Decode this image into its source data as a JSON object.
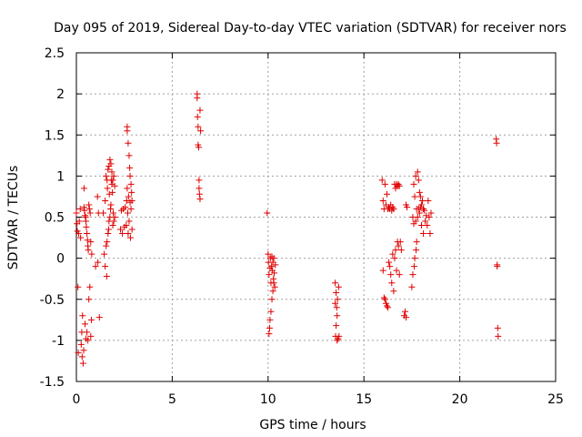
{
  "chart_data": {
    "type": "scatter",
    "title": "Day 095 of 2019, Sidereal Day-to-day VTEC variation (SDTVAR) for receiver nors",
    "xlabel": "GPS time / hours",
    "ylabel": "SDTVAR / TECUs",
    "xlim": [
      0,
      25
    ],
    "ylim": [
      -1.5,
      2.5
    ],
    "xticks": [
      0,
      5,
      10,
      15,
      20,
      25
    ],
    "xtick_labels": [
      "0",
      "5",
      "10",
      "15",
      "20",
      "25"
    ],
    "yticks": [
      -1.5,
      -1,
      -0.5,
      0,
      0.5,
      1,
      1.5,
      2,
      2.5
    ],
    "ytick_labels": [
      "-1.5",
      "-1",
      "-0.5",
      "0",
      "0.5",
      "1",
      "1.5",
      "2",
      "2.5"
    ],
    "grid": true,
    "marker": "+",
    "color": "#e00000",
    "series": [
      {
        "name": "SDTVAR",
        "points": [
          [
            0.0,
            0.55
          ],
          [
            0.03,
            0.42
          ],
          [
            0.05,
            0.33
          ],
          [
            0.08,
            -0.35
          ],
          [
            0.1,
            -1.15
          ],
          [
            0.12,
            0.3
          ],
          [
            0.15,
            0.45
          ],
          [
            0.2,
            0.6
          ],
          [
            0.22,
            0.25
          ],
          [
            0.25,
            -1.05
          ],
          [
            0.28,
            -0.9
          ],
          [
            0.3,
            -1.2
          ],
          [
            0.32,
            -0.7
          ],
          [
            0.35,
            -1.28
          ],
          [
            0.38,
            -1.12
          ],
          [
            0.4,
            0.85
          ],
          [
            0.4,
            0.62
          ],
          [
            0.42,
            0.58
          ],
          [
            0.45,
            0.52
          ],
          [
            0.45,
            -0.8
          ],
          [
            0.48,
            0.5
          ],
          [
            0.5,
            0.45
          ],
          [
            0.5,
            -0.98
          ],
          [
            0.52,
            0.38
          ],
          [
            0.55,
            0.3
          ],
          [
            0.55,
            -0.9
          ],
          [
            0.58,
            0.22
          ],
          [
            0.6,
            0.15
          ],
          [
            0.6,
            -1.0
          ],
          [
            0.62,
            0.1
          ],
          [
            0.65,
            0.65
          ],
          [
            0.65,
            -0.5
          ],
          [
            0.68,
            0.6
          ],
          [
            0.7,
            -0.35
          ],
          [
            0.72,
            0.55
          ],
          [
            0.75,
            0.2
          ],
          [
            0.75,
            -0.95
          ],
          [
            0.78,
            -0.75
          ],
          [
            0.8,
            0.05
          ],
          [
            1.0,
            -0.1
          ],
          [
            1.1,
            0.75
          ],
          [
            1.12,
            -0.05
          ],
          [
            1.15,
            0.55
          ],
          [
            1.2,
            -0.72
          ],
          [
            1.4,
            0.55
          ],
          [
            1.45,
            0.05
          ],
          [
            1.5,
            0.7
          ],
          [
            1.5,
            -0.1
          ],
          [
            1.55,
            1.0
          ],
          [
            1.55,
            0.15
          ],
          [
            1.58,
            -0.22
          ],
          [
            1.6,
            0.2
          ],
          [
            1.6,
            0.95
          ],
          [
            1.62,
            0.85
          ],
          [
            1.65,
            0.3
          ],
          [
            1.65,
            1.08
          ],
          [
            1.68,
            0.35
          ],
          [
            1.7,
            0.45
          ],
          [
            1.7,
            1.12
          ],
          [
            1.72,
            0.78
          ],
          [
            1.75,
            0.5
          ],
          [
            1.75,
            1.2
          ],
          [
            1.78,
            0.6
          ],
          [
            1.8,
            0.65
          ],
          [
            1.8,
            1.15
          ],
          [
            1.82,
            0.95
          ],
          [
            1.85,
            0.9
          ],
          [
            1.85,
            1.05
          ],
          [
            1.88,
            0.8
          ],
          [
            1.9,
            0.95
          ],
          [
            1.9,
            0.4
          ],
          [
            1.92,
            0.55
          ],
          [
            1.95,
            1.0
          ],
          [
            1.95,
            0.45
          ],
          [
            2.0,
            0.88
          ],
          [
            2.0,
            0.5
          ],
          [
            2.3,
            0.35
          ],
          [
            2.35,
            0.58
          ],
          [
            2.4,
            0.3
          ],
          [
            2.45,
            0.6
          ],
          [
            2.5,
            0.38
          ],
          [
            2.55,
            0.62
          ],
          [
            2.6,
            0.4
          ],
          [
            2.62,
            0.7
          ],
          [
            2.65,
            1.55
          ],
          [
            2.65,
            1.6
          ],
          [
            2.65,
            0.85
          ],
          [
            2.68,
            0.55
          ],
          [
            2.7,
            1.4
          ],
          [
            2.7,
            0.3
          ],
          [
            2.72,
            0.75
          ],
          [
            2.75,
            1.25
          ],
          [
            2.75,
            0.45
          ],
          [
            2.78,
            1.1
          ],
          [
            2.8,
            0.68
          ],
          [
            2.8,
            1.0
          ],
          [
            2.82,
            0.25
          ],
          [
            2.85,
            0.9
          ],
          [
            2.85,
            0.6
          ],
          [
            2.88,
            0.8
          ],
          [
            2.9,
            0.35
          ],
          [
            2.9,
            0.7
          ],
          [
            6.3,
            2.0
          ],
          [
            6.3,
            1.95
          ],
          [
            6.32,
            1.72
          ],
          [
            6.35,
            1.6
          ],
          [
            6.35,
            1.38
          ],
          [
            6.38,
            1.35
          ],
          [
            6.4,
            0.95
          ],
          [
            6.4,
            0.85
          ],
          [
            6.42,
            0.78
          ],
          [
            6.45,
            0.72
          ],
          [
            6.45,
            1.8
          ],
          [
            6.48,
            1.55
          ],
          [
            9.95,
            0.55
          ],
          [
            10.0,
            0.05
          ],
          [
            10.02,
            -0.05
          ],
          [
            10.05,
            -0.2
          ],
          [
            10.05,
            -0.92
          ],
          [
            10.08,
            -0.85
          ],
          [
            10.1,
            -0.12
          ],
          [
            10.1,
            -0.75
          ],
          [
            10.12,
            0.0
          ],
          [
            10.15,
            -0.3
          ],
          [
            10.15,
            -0.65
          ],
          [
            10.18,
            -0.1
          ],
          [
            10.2,
            -0.5
          ],
          [
            10.2,
            0.02
          ],
          [
            10.22,
            -0.15
          ],
          [
            10.25,
            -0.4
          ],
          [
            10.25,
            -0.05
          ],
          [
            10.28,
            -0.25
          ],
          [
            10.3,
            -0.3
          ],
          [
            10.3,
            0.0
          ],
          [
            10.32,
            -0.18
          ],
          [
            10.35,
            -0.35
          ],
          [
            10.38,
            -0.08
          ],
          [
            13.5,
            -0.3
          ],
          [
            13.5,
            -0.55
          ],
          [
            13.52,
            -0.95
          ],
          [
            13.55,
            -0.42
          ],
          [
            13.55,
            -0.82
          ],
          [
            13.58,
            -0.6
          ],
          [
            13.6,
            -1.0
          ],
          [
            13.6,
            -0.7
          ],
          [
            13.62,
            -0.5
          ],
          [
            13.65,
            -0.98
          ],
          [
            13.68,
            -0.35
          ],
          [
            13.7,
            -0.95
          ],
          [
            15.95,
            0.95
          ],
          [
            16.0,
            0.7
          ],
          [
            16.0,
            -0.15
          ],
          [
            16.05,
            0.6
          ],
          [
            16.05,
            -0.48
          ],
          [
            16.1,
            0.9
          ],
          [
            16.1,
            -0.5
          ],
          [
            16.15,
            0.65
          ],
          [
            16.15,
            -0.55
          ],
          [
            16.2,
            0.78
          ],
          [
            16.2,
            -0.58
          ],
          [
            16.25,
            0.6
          ],
          [
            16.25,
            -0.6
          ],
          [
            16.3,
            0.62
          ],
          [
            16.3,
            -0.05
          ],
          [
            16.35,
            0.6
          ],
          [
            16.35,
            -0.1
          ],
          [
            16.4,
            0.65
          ],
          [
            16.4,
            -0.2
          ],
          [
            16.45,
            0.58
          ],
          [
            16.45,
            -0.3
          ],
          [
            16.5,
            0.62
          ],
          [
            16.5,
            0.05
          ],
          [
            16.55,
            0.6
          ],
          [
            16.55,
            -0.4
          ],
          [
            16.6,
            0.9
          ],
          [
            16.6,
            0.0
          ],
          [
            16.65,
            0.85
          ],
          [
            16.65,
            0.1
          ],
          [
            16.7,
            0.9
          ],
          [
            16.7,
            -0.15
          ],
          [
            16.75,
            0.88
          ],
          [
            16.75,
            0.2
          ],
          [
            16.8,
            0.9
          ],
          [
            16.8,
            0.15
          ],
          [
            16.85,
            0.88
          ],
          [
            16.85,
            -0.2
          ],
          [
            16.9,
            0.2
          ],
          [
            16.95,
            0.1
          ],
          [
            17.1,
            -0.7
          ],
          [
            17.15,
            -0.65
          ],
          [
            17.2,
            0.65
          ],
          [
            17.2,
            -0.72
          ],
          [
            17.25,
            0.62
          ],
          [
            17.5,
            -0.35
          ],
          [
            17.55,
            0.5
          ],
          [
            17.55,
            -0.2
          ],
          [
            17.6,
            0.9
          ],
          [
            17.6,
            0.42
          ],
          [
            17.62,
            -0.1
          ],
          [
            17.65,
            0.75
          ],
          [
            17.65,
            0.0
          ],
          [
            17.7,
            1.0
          ],
          [
            17.7,
            0.45
          ],
          [
            17.72,
            0.1
          ],
          [
            17.75,
            0.6
          ],
          [
            17.75,
            0.2
          ],
          [
            17.8,
            1.05
          ],
          [
            17.8,
            0.5
          ],
          [
            17.85,
            0.95
          ],
          [
            17.85,
            0.6
          ],
          [
            17.9,
            0.8
          ],
          [
            17.9,
            0.55
          ],
          [
            17.95,
            0.75
          ],
          [
            17.95,
            0.62
          ],
          [
            18.0,
            0.65
          ],
          [
            18.0,
            0.4
          ],
          [
            18.05,
            0.7
          ],
          [
            18.1,
            0.6
          ],
          [
            18.1,
            0.3
          ],
          [
            18.15,
            0.58
          ],
          [
            18.2,
            0.45
          ],
          [
            18.25,
            0.52
          ],
          [
            18.3,
            0.4
          ],
          [
            18.35,
            0.7
          ],
          [
            18.4,
            0.5
          ],
          [
            18.45,
            0.3
          ],
          [
            18.5,
            0.55
          ],
          [
            21.9,
            1.45
          ],
          [
            21.92,
            1.4
          ],
          [
            21.95,
            -0.08
          ],
          [
            21.95,
            -0.1
          ],
          [
            21.98,
            -0.85
          ],
          [
            22.0,
            -0.95
          ]
        ]
      }
    ]
  }
}
